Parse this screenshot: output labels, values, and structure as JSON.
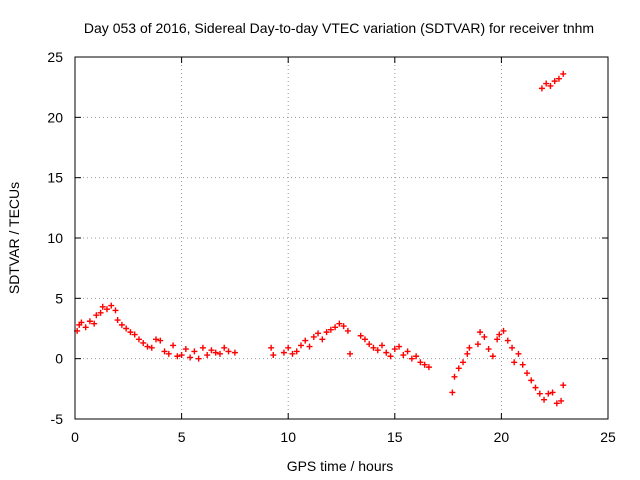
{
  "chart_data": {
    "type": "scatter",
    "title": "Day 053 of 2016, Sidereal Day-to-day VTEC variation (SDTVAR) for receiver tnhm",
    "xlabel": "GPS time / hours",
    "ylabel": "SDTVAR / TECUs",
    "xlim": [
      0,
      25
    ],
    "ylim": [
      -5,
      25
    ],
    "xticks": [
      0,
      5,
      10,
      15,
      20,
      25
    ],
    "yticks": [
      -5,
      0,
      5,
      10,
      15,
      20,
      25
    ],
    "grid": true,
    "marker": "+",
    "series": [
      {
        "name": "SDTVAR",
        "color": "#ff0000",
        "points": [
          [
            0.1,
            2.3
          ],
          [
            0.2,
            2.8
          ],
          [
            0.3,
            3.0
          ],
          [
            0.5,
            2.6
          ],
          [
            0.7,
            3.1
          ],
          [
            0.9,
            2.9
          ],
          [
            1.0,
            3.6
          ],
          [
            1.2,
            3.8
          ],
          [
            1.3,
            4.3
          ],
          [
            1.5,
            4.1
          ],
          [
            1.7,
            4.4
          ],
          [
            1.9,
            4.0
          ],
          [
            2.0,
            3.2
          ],
          [
            2.2,
            2.8
          ],
          [
            2.4,
            2.5
          ],
          [
            2.6,
            2.2
          ],
          [
            2.8,
            2.0
          ],
          [
            3.0,
            1.6
          ],
          [
            3.2,
            1.3
          ],
          [
            3.4,
            1.0
          ],
          [
            3.6,
            0.9
          ],
          [
            3.8,
            1.6
          ],
          [
            4.0,
            1.5
          ],
          [
            4.2,
            0.6
          ],
          [
            4.4,
            0.4
          ],
          [
            4.6,
            1.1
          ],
          [
            4.8,
            0.2
          ],
          [
            5.0,
            0.3
          ],
          [
            5.2,
            0.8
          ],
          [
            5.4,
            0.1
          ],
          [
            5.6,
            0.6
          ],
          [
            5.8,
            0.0
          ],
          [
            6.0,
            0.9
          ],
          [
            6.2,
            0.3
          ],
          [
            6.4,
            0.7
          ],
          [
            6.6,
            0.5
          ],
          [
            6.8,
            0.4
          ],
          [
            7.0,
            0.9
          ],
          [
            7.2,
            0.6
          ],
          [
            7.5,
            0.5
          ],
          [
            9.2,
            0.9
          ],
          [
            9.3,
            0.3
          ],
          [
            9.8,
            0.5
          ],
          [
            10.0,
            0.9
          ],
          [
            10.2,
            0.4
          ],
          [
            10.4,
            0.6
          ],
          [
            10.6,
            1.1
          ],
          [
            10.8,
            1.5
          ],
          [
            11.0,
            1.0
          ],
          [
            11.2,
            1.8
          ],
          [
            11.4,
            2.1
          ],
          [
            11.6,
            1.6
          ],
          [
            11.8,
            2.2
          ],
          [
            12.0,
            2.4
          ],
          [
            12.2,
            2.6
          ],
          [
            12.4,
            2.9
          ],
          [
            12.6,
            2.7
          ],
          [
            12.8,
            2.3
          ],
          [
            12.9,
            0.4
          ],
          [
            13.4,
            1.9
          ],
          [
            13.6,
            1.6
          ],
          [
            13.8,
            1.2
          ],
          [
            14.0,
            0.9
          ],
          [
            14.2,
            0.7
          ],
          [
            14.4,
            1.1
          ],
          [
            14.6,
            0.5
          ],
          [
            14.8,
            0.2
          ],
          [
            15.0,
            0.8
          ],
          [
            15.2,
            1.0
          ],
          [
            15.4,
            0.3
          ],
          [
            15.6,
            0.6
          ],
          [
            15.8,
            0.0
          ],
          [
            16.0,
            0.2
          ],
          [
            16.2,
            -0.3
          ],
          [
            16.4,
            -0.5
          ],
          [
            16.6,
            -0.7
          ],
          [
            17.7,
            -2.8
          ],
          [
            17.8,
            -1.5
          ],
          [
            18.0,
            -0.8
          ],
          [
            18.2,
            -0.3
          ],
          [
            18.4,
            0.4
          ],
          [
            18.5,
            0.9
          ],
          [
            18.9,
            1.2
          ],
          [
            19.0,
            2.2
          ],
          [
            19.2,
            1.8
          ],
          [
            19.4,
            0.8
          ],
          [
            19.6,
            0.2
          ],
          [
            19.8,
            1.6
          ],
          [
            19.9,
            2.0
          ],
          [
            20.1,
            2.3
          ],
          [
            20.3,
            1.5
          ],
          [
            20.5,
            0.9
          ],
          [
            20.6,
            -0.3
          ],
          [
            20.8,
            0.4
          ],
          [
            21.0,
            -0.5
          ],
          [
            21.2,
            -1.2
          ],
          [
            21.4,
            -1.8
          ],
          [
            21.6,
            -2.4
          ],
          [
            21.8,
            -2.9
          ],
          [
            22.0,
            -3.4
          ],
          [
            22.2,
            -2.9
          ],
          [
            22.4,
            -2.8
          ],
          [
            22.6,
            -3.7
          ],
          [
            22.8,
            -3.5
          ],
          [
            22.9,
            -2.2
          ],
          [
            21.9,
            22.4
          ],
          [
            22.1,
            22.8
          ],
          [
            22.3,
            22.6
          ],
          [
            22.5,
            23.0
          ],
          [
            22.7,
            23.2
          ],
          [
            22.9,
            23.6
          ]
        ]
      }
    ]
  }
}
